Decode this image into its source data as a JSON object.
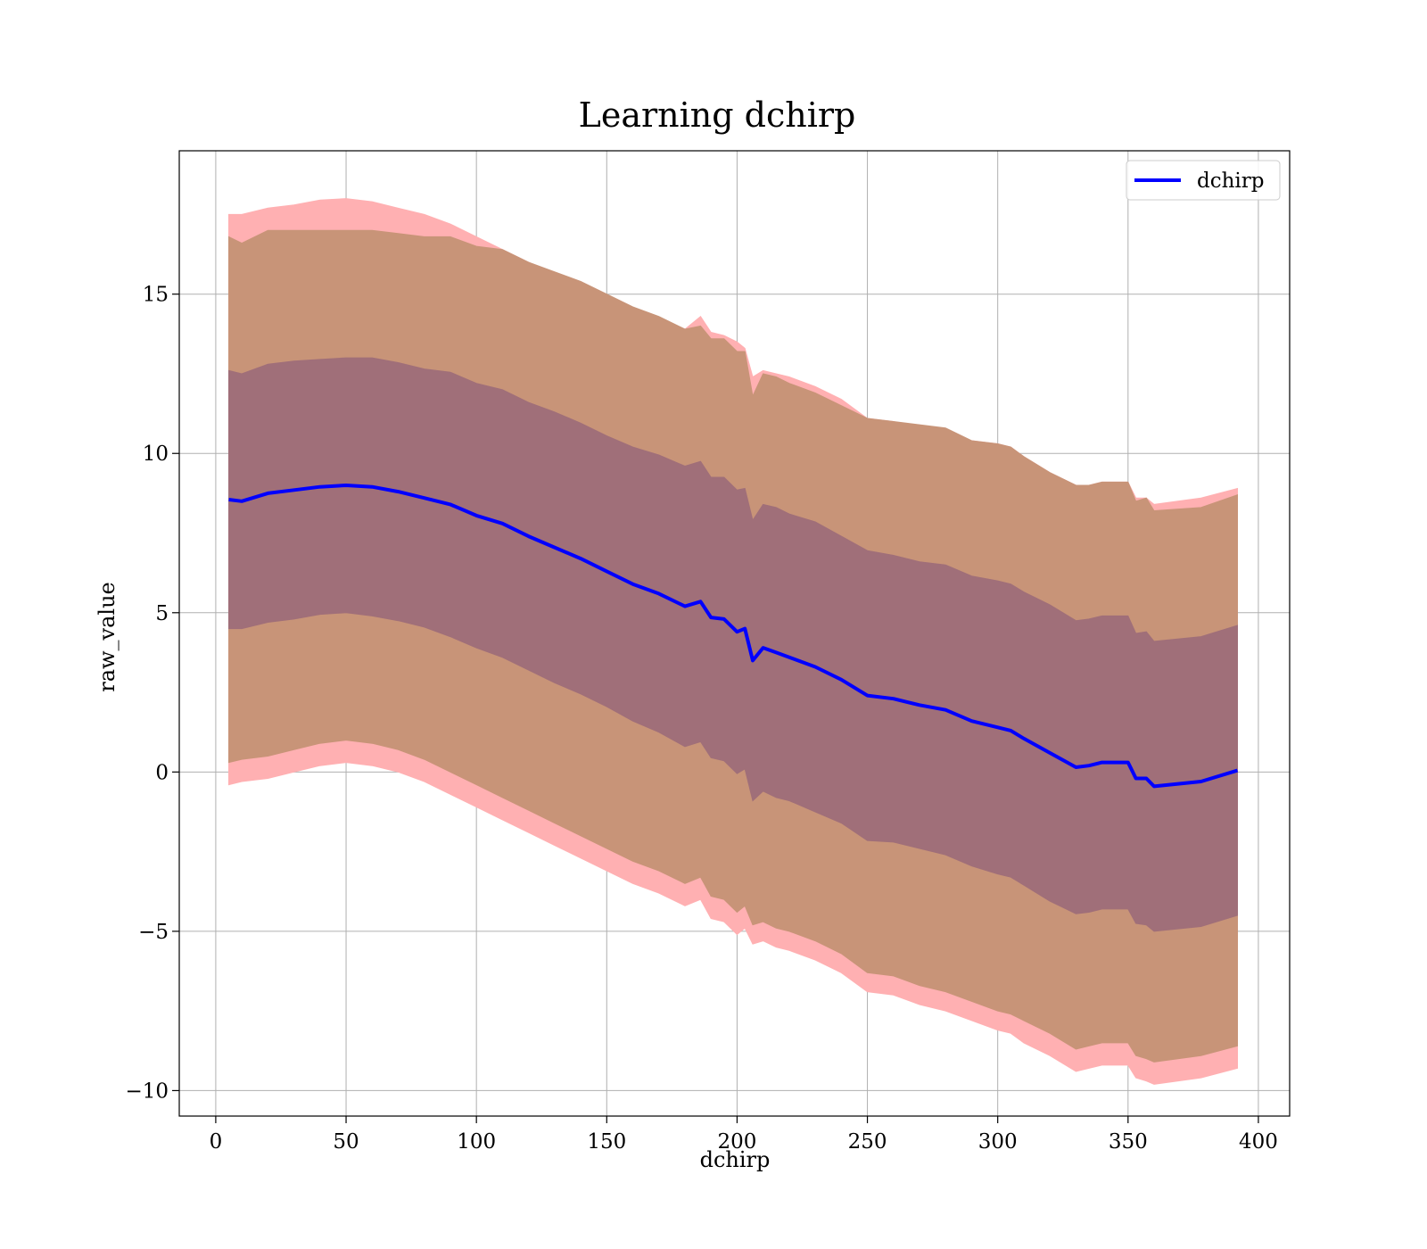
{
  "chart_data": {
    "type": "line",
    "title": "Learning dchirp",
    "xlabel": "dchirp",
    "ylabel": "raw_value",
    "xlim": [
      -14,
      412
    ],
    "ylim": [
      -10.8,
      19.5
    ],
    "xticks": [
      0,
      50,
      100,
      150,
      200,
      250,
      300,
      350,
      400
    ],
    "xtick_labels": [
      "0",
      "50",
      "100",
      "150",
      "200",
      "250",
      "300",
      "350",
      "400"
    ],
    "yticks": [
      -10,
      -5,
      0,
      5,
      10,
      15
    ],
    "ytick_labels": [
      "−10",
      "−5",
      "0",
      "5",
      "10",
      "15"
    ],
    "grid": true,
    "legend": {
      "position": "top-right",
      "entries": [
        "dchirp"
      ]
    },
    "colors": {
      "line": "#0000ff",
      "band_outer": "#ffb0b2",
      "band_middle": "#c89478",
      "band_inner": "#a06f79"
    },
    "x": [
      5,
      10,
      20,
      30,
      40,
      50,
      60,
      70,
      80,
      90,
      100,
      110,
      120,
      130,
      140,
      150,
      160,
      170,
      180,
      186,
      190,
      195,
      200,
      203,
      206,
      210,
      215,
      220,
      230,
      240,
      250,
      260,
      270,
      280,
      290,
      300,
      305,
      310,
      320,
      330,
      335,
      340,
      345,
      350,
      353,
      357,
      360,
      378,
      392
    ],
    "series": [
      {
        "name": "dchirp",
        "values": [
          8.55,
          8.5,
          8.75,
          8.85,
          8.95,
          9.0,
          8.95,
          8.8,
          8.6,
          8.4,
          8.05,
          7.8,
          7.4,
          7.05,
          6.7,
          6.3,
          5.9,
          5.6,
          5.2,
          5.35,
          4.85,
          4.8,
          4.4,
          4.5,
          3.5,
          3.9,
          3.75,
          3.6,
          3.3,
          2.9,
          2.4,
          2.3,
          2.1,
          1.95,
          1.6,
          1.4,
          1.3,
          1.05,
          0.6,
          0.15,
          0.2,
          0.3,
          0.3,
          0.3,
          -0.2,
          -0.2,
          -0.45,
          -0.3,
          0.05
        ]
      }
    ],
    "bands": [
      {
        "lower": [
          -0.4,
          -0.3,
          -0.2,
          0.0,
          0.2,
          0.3,
          0.2,
          0.0,
          -0.3,
          -0.7,
          -1.1,
          -1.5,
          -1.9,
          -2.3,
          -2.7,
          -3.1,
          -3.5,
          -3.8,
          -4.2,
          -4.0,
          -4.6,
          -4.7,
          -5.1,
          -4.9,
          -5.4,
          -5.3,
          -5.5,
          -5.6,
          -5.9,
          -6.3,
          -6.9,
          -7.0,
          -7.3,
          -7.5,
          -7.8,
          -8.1,
          -8.2,
          -8.5,
          -8.9,
          -9.4,
          -9.3,
          -9.2,
          -9.2,
          -9.2,
          -9.6,
          -9.7,
          -9.8,
          -9.6,
          -9.3
        ]
      },
      {
        "lower": [
          0.3,
          0.4,
          0.5,
          0.7,
          0.9,
          1.0,
          0.9,
          0.7,
          0.4,
          0.0,
          -0.4,
          -0.8,
          -1.2,
          -1.6,
          -2.0,
          -2.4,
          -2.8,
          -3.1,
          -3.5,
          -3.3,
          -3.9,
          -4.0,
          -4.4,
          -4.2,
          -4.8,
          -4.7,
          -4.9,
          -5.0,
          -5.3,
          -5.7,
          -6.3,
          -6.4,
          -6.7,
          -6.9,
          -7.2,
          -7.5,
          -7.6,
          -7.8,
          -8.2,
          -8.7,
          -8.6,
          -8.5,
          -8.5,
          -8.5,
          -8.9,
          -9.0,
          -9.1,
          -8.9,
          -8.6
        ]
      },
      {
        "lower": [
          4.5,
          4.5,
          4.7,
          4.8,
          4.95,
          5.0,
          4.9,
          4.75,
          4.55,
          4.25,
          3.9,
          3.6,
          3.2,
          2.8,
          2.45,
          2.05,
          1.6,
          1.25,
          0.8,
          0.95,
          0.45,
          0.35,
          -0.05,
          0.1,
          -0.9,
          -0.6,
          -0.8,
          -0.9,
          -1.25,
          -1.6,
          -2.15,
          -2.2,
          -2.4,
          -2.6,
          -2.95,
          -3.2,
          -3.3,
          -3.55,
          -4.05,
          -4.45,
          -4.4,
          -4.3,
          -4.3,
          -4.3,
          -4.75,
          -4.8,
          -5.0,
          -4.85,
          -4.5
        ]
      }
    ],
    "bands_upper": [
      [
        17.5,
        17.5,
        17.7,
        17.8,
        17.95,
        18.0,
        17.9,
        17.7,
        17.5,
        17.2,
        16.8,
        16.4,
        16.0,
        15.6,
        15.2,
        14.8,
        14.5,
        14.2,
        13.9,
        14.3,
        13.8,
        13.7,
        13.5,
        13.3,
        12.4,
        12.6,
        12.5,
        12.4,
        12.1,
        11.7,
        11.1,
        11.0,
        10.8,
        10.6,
        10.4,
        10.3,
        10.2,
        9.9,
        9.4,
        9.0,
        9.0,
        9.1,
        9.1,
        9.1,
        8.6,
        8.6,
        8.4,
        8.6,
        8.9
      ]
    ]
  }
}
